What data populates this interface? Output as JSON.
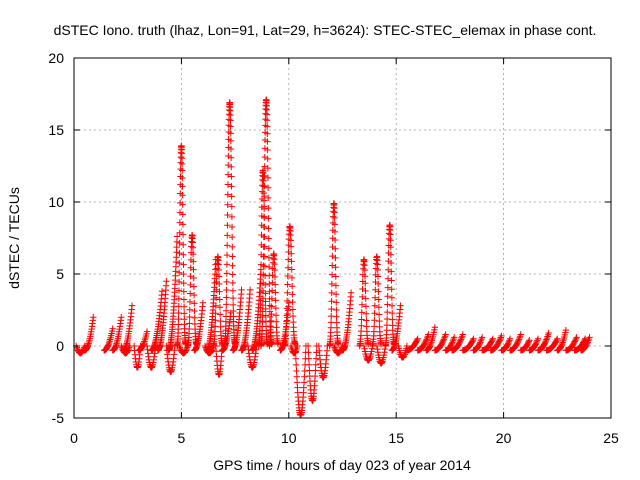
{
  "chart_data": {
    "type": "scatter",
    "title": "dSTEC Iono. truth (lhaz, Lon=91, Lat=29, h=3624): STEC-STEC_elemax in phase cont.",
    "xlabel": "GPS time / hours of day 023 of year 2014",
    "ylabel": "dSTEC  / TECUs",
    "xlim": [
      0,
      25
    ],
    "ylim": [
      -5,
      20
    ],
    "x_ticks": [
      "0",
      "5",
      "10",
      "15",
      "20",
      "25"
    ],
    "y_ticks": [
      "-5",
      "0",
      "5",
      "10",
      "15",
      "20"
    ],
    "grid": true,
    "marker": "plus",
    "color": "#ff0000",
    "arcs": [
      {
        "start": 0.1,
        "end": 0.5,
        "peak": -0.5,
        "shape": "dip"
      },
      {
        "start": 0.5,
        "end": 0.9,
        "peak": 2.0,
        "shape": "rise"
      },
      {
        "start": 1.4,
        "end": 1.8,
        "peak": 1.2,
        "shape": "rise"
      },
      {
        "start": 1.8,
        "end": 2.2,
        "peak": 2.0,
        "shape": "rise"
      },
      {
        "start": 2.2,
        "end": 2.6,
        "peak": -0.5,
        "shape": "dip"
      },
      {
        "start": 2.3,
        "end": 2.7,
        "peak": 2.8,
        "shape": "rise"
      },
      {
        "start": 2.8,
        "end": 3.1,
        "peak": -1.5,
        "shape": "dip"
      },
      {
        "start": 3.0,
        "end": 3.4,
        "peak": 1.0,
        "shape": "rise"
      },
      {
        "start": 3.4,
        "end": 3.8,
        "peak": -1.5,
        "shape": "dip"
      },
      {
        "start": 3.6,
        "end": 4.1,
        "peak": 3.8,
        "shape": "rise"
      },
      {
        "start": 3.9,
        "end": 4.3,
        "peak": 4.5,
        "shape": "rise"
      },
      {
        "start": 4.3,
        "end": 4.7,
        "peak": -1.8,
        "shape": "dip"
      },
      {
        "start": 4.4,
        "end": 4.8,
        "peak": 7.6,
        "shape": "rise"
      },
      {
        "start": 4.8,
        "end": 5.2,
        "peak": 14.2,
        "shape": "peak"
      },
      {
        "start": 4.9,
        "end": 5.3,
        "peak": -0.5,
        "shape": "dip"
      },
      {
        "start": 5.3,
        "end": 5.7,
        "peak": 8.0,
        "shape": "peak"
      },
      {
        "start": 5.6,
        "end": 6.0,
        "peak": 3.0,
        "shape": "rise"
      },
      {
        "start": 6.1,
        "end": 6.5,
        "peak": -0.5,
        "shape": "dip"
      },
      {
        "start": 6.2,
        "end": 6.6,
        "peak": 6.0,
        "shape": "rise"
      },
      {
        "start": 6.5,
        "end": 6.9,
        "peak": 6.5,
        "shape": "peak"
      },
      {
        "start": 6.6,
        "end": 6.9,
        "peak": -2.0,
        "shape": "dip"
      },
      {
        "start": 6.9,
        "end": 7.3,
        "peak": 2.3,
        "shape": "rise"
      },
      {
        "start": 7.0,
        "end": 7.5,
        "peak": 17.2,
        "shape": "peak"
      },
      {
        "start": 7.4,
        "end": 7.8,
        "peak": 3.9,
        "shape": "rise"
      },
      {
        "start": 7.8,
        "end": 8.2,
        "peak": 3.9,
        "shape": "rise"
      },
      {
        "start": 8.1,
        "end": 8.5,
        "peak": -1.5,
        "shape": "dip"
      },
      {
        "start": 8.3,
        "end": 8.7,
        "peak": 5.3,
        "shape": "rise"
      },
      {
        "start": 8.6,
        "end": 9.0,
        "peak": 12.5,
        "shape": "peak"
      },
      {
        "start": 8.7,
        "end": 9.2,
        "peak": 17.4,
        "shape": "peak"
      },
      {
        "start": 9.1,
        "end": 9.5,
        "peak": 6.7,
        "shape": "peak"
      },
      {
        "start": 9.6,
        "end": 10.0,
        "peak": 3.0,
        "shape": "rise"
      },
      {
        "start": 9.8,
        "end": 10.3,
        "peak": 8.6,
        "shape": "peak"
      },
      {
        "start": 10.1,
        "end": 10.4,
        "peak": -0.5,
        "shape": "dip"
      },
      {
        "start": 10.3,
        "end": 10.8,
        "peak": -4.8,
        "shape": "dip"
      },
      {
        "start": 10.9,
        "end": 11.3,
        "peak": -3.8,
        "shape": "dip"
      },
      {
        "start": 11.4,
        "end": 11.8,
        "peak": -2.2,
        "shape": "dip"
      },
      {
        "start": 11.9,
        "end": 12.3,
        "peak": 10.2,
        "shape": "peak"
      },
      {
        "start": 12.1,
        "end": 12.5,
        "peak": -0.5,
        "shape": "dip"
      },
      {
        "start": 12.5,
        "end": 12.9,
        "peak": 3.7,
        "shape": "rise"
      },
      {
        "start": 13.3,
        "end": 13.7,
        "peak": 6.3,
        "shape": "peak"
      },
      {
        "start": 13.5,
        "end": 13.9,
        "peak": -1.0,
        "shape": "dip"
      },
      {
        "start": 13.9,
        "end": 14.3,
        "peak": 6.5,
        "shape": "peak"
      },
      {
        "start": 14.1,
        "end": 14.5,
        "peak": -1.2,
        "shape": "dip"
      },
      {
        "start": 14.5,
        "end": 14.9,
        "peak": 8.7,
        "shape": "peak"
      },
      {
        "start": 14.8,
        "end": 15.2,
        "peak": 2.8,
        "shape": "rise"
      },
      {
        "start": 15.1,
        "end": 15.5,
        "peak": -0.8,
        "shape": "dip"
      },
      {
        "start": 15.5,
        "end": 16.0,
        "peak": 0.5,
        "shape": "rise"
      },
      {
        "start": 16.0,
        "end": 16.5,
        "peak": 0.8,
        "shape": "rise"
      },
      {
        "start": 16.4,
        "end": 16.8,
        "peak": 1.3,
        "shape": "rise"
      },
      {
        "start": 16.8,
        "end": 17.3,
        "peak": 0.8,
        "shape": "rise"
      },
      {
        "start": 17.3,
        "end": 17.7,
        "peak": 0.6,
        "shape": "rise"
      },
      {
        "start": 17.6,
        "end": 18.1,
        "peak": 0.8,
        "shape": "rise"
      },
      {
        "start": 18.1,
        "end": 18.6,
        "peak": 0.5,
        "shape": "rise"
      },
      {
        "start": 18.6,
        "end": 19.0,
        "peak": 0.6,
        "shape": "rise"
      },
      {
        "start": 19.0,
        "end": 19.5,
        "peak": 0.5,
        "shape": "rise"
      },
      {
        "start": 19.4,
        "end": 19.9,
        "peak": 0.7,
        "shape": "rise"
      },
      {
        "start": 19.9,
        "end": 20.3,
        "peak": 0.5,
        "shape": "rise"
      },
      {
        "start": 20.3,
        "end": 20.8,
        "peak": 0.8,
        "shape": "rise"
      },
      {
        "start": 20.8,
        "end": 21.2,
        "peak": 0.4,
        "shape": "rise"
      },
      {
        "start": 21.2,
        "end": 21.6,
        "peak": 0.5,
        "shape": "rise"
      },
      {
        "start": 21.6,
        "end": 22.1,
        "peak": 0.9,
        "shape": "rise"
      },
      {
        "start": 22.0,
        "end": 22.5,
        "peak": 0.5,
        "shape": "rise"
      },
      {
        "start": 22.5,
        "end": 22.9,
        "peak": 1.1,
        "shape": "rise"
      },
      {
        "start": 22.9,
        "end": 23.4,
        "peak": 0.6,
        "shape": "rise"
      },
      {
        "start": 23.3,
        "end": 23.8,
        "peak": 0.5,
        "shape": "rise"
      },
      {
        "start": 23.6,
        "end": 24.0,
        "peak": 0.6,
        "shape": "rise"
      }
    ]
  }
}
